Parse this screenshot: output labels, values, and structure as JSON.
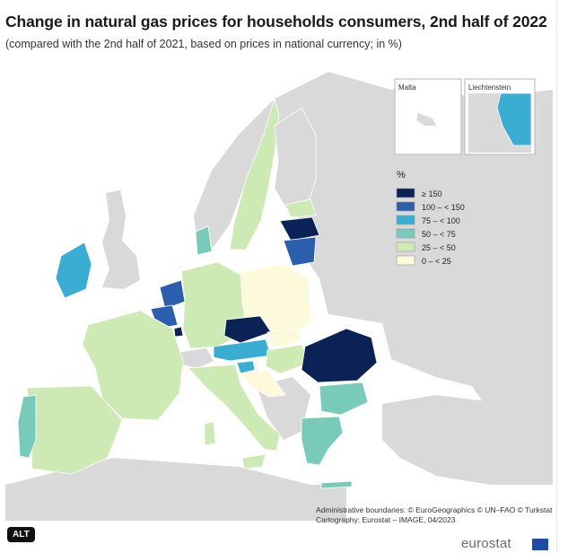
{
  "title": "Change in natural gas prices for households consumers, 2nd half of 2022",
  "subtitle": "(compared with the 2nd half of 2021, based on prices in national currency; in %)",
  "insets": {
    "malta": "Malta",
    "liechtenstein": "Liechtenstein"
  },
  "legend": {
    "title": "%",
    "items": [
      {
        "label": "≥ 150",
        "color": "#0b2257"
      },
      {
        "label": "100 – < 150",
        "color": "#2b5fad"
      },
      {
        "label": "75 – < 100",
        "color": "#3aaed2"
      },
      {
        "label": "50 – < 75",
        "color": "#78cbb8"
      },
      {
        "label": "25 – < 50",
        "color": "#cde9b4"
      },
      {
        "label": "0 – < 25",
        "color": "#fdfadb"
      }
    ]
  },
  "credits": {
    "line1": "Administrative boundaries: © EuroGeographics © UN–FAO © Turkstat",
    "line2": "Cartography: Eurostat – IMAGE, 04/2023"
  },
  "badge": "ALT",
  "brand": "eurostat",
  "colors": {
    "land": "#d9d9d9",
    "sea": "#ffffff",
    "border": "#ffffff",
    "coast": "#ffffff"
  }
}
